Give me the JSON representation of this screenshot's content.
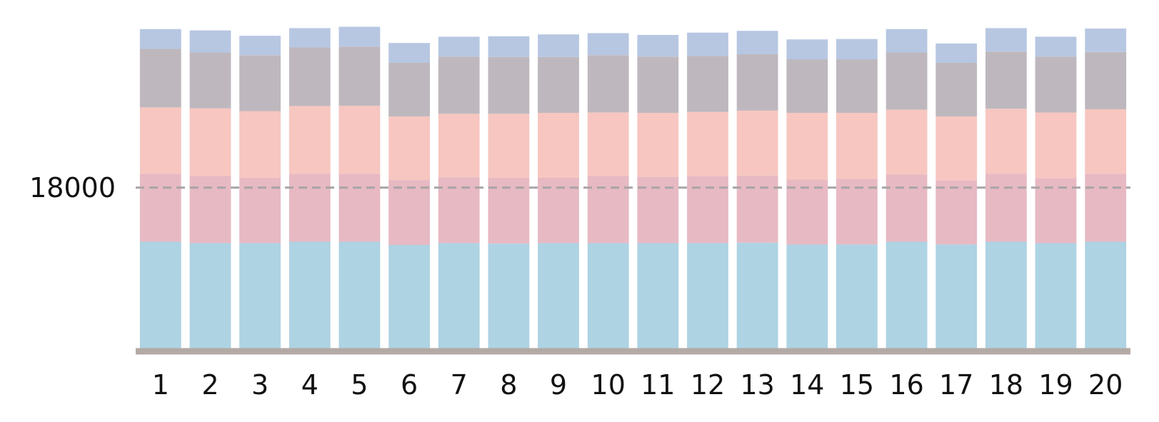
{
  "chart_data": {
    "type": "bar",
    "stacked": true,
    "categories": [
      "1",
      "2",
      "3",
      "4",
      "5",
      "6",
      "7",
      "8",
      "9",
      "10",
      "11",
      "12",
      "13",
      "14",
      "15",
      "16",
      "17",
      "18",
      "19",
      "20"
    ],
    "series": [
      {
        "color": "#aed3e3",
        "values": [
          12000,
          11850,
          11850,
          12000,
          12000,
          11650,
          11850,
          11800,
          11850,
          11850,
          11850,
          11850,
          11900,
          11700,
          11700,
          12000,
          11700,
          12000,
          11850,
          12000
        ]
      },
      {
        "color": "#e7b9c3",
        "values": [
          7550,
          7450,
          7250,
          7550,
          7550,
          7200,
          7300,
          7300,
          7250,
          7450,
          7350,
          7400,
          7450,
          7200,
          7300,
          7450,
          7100,
          7550,
          7200,
          7550
        ]
      },
      {
        "color": "#f7c6c0",
        "values": [
          7350,
          7500,
          7400,
          7500,
          7550,
          7050,
          7050,
          7100,
          7200,
          7050,
          7100,
          7150,
          7200,
          7400,
          7300,
          7200,
          7100,
          7200,
          7300,
          7150
        ]
      },
      {
        "color": "#beb8be",
        "values": [
          6500,
          6200,
          6200,
          6500,
          6550,
          5950,
          6350,
          6300,
          6200,
          6350,
          6250,
          6200,
          6250,
          5950,
          5950,
          6350,
          5950,
          6350,
          6200,
          6350
        ]
      },
      {
        "color": "#b7c7e2",
        "values": [
          2200,
          2450,
          2150,
          2150,
          2200,
          2200,
          2200,
          2300,
          2500,
          2450,
          2400,
          2600,
          2600,
          2200,
          2250,
          2600,
          2150,
          2600,
          2200,
          2600
        ]
      }
    ],
    "ylim": [
      0,
      37000
    ],
    "ytick_labels": [
      {
        "value": 18000,
        "label": "18000"
      }
    ],
    "reference_line": {
      "value": 18000,
      "style": "dashed",
      "color": "#a8a4a6"
    },
    "baseline_color": "#b3aaa5",
    "grid": false,
    "legend": "none",
    "title": "",
    "xlabel": "",
    "ylabel": ""
  }
}
